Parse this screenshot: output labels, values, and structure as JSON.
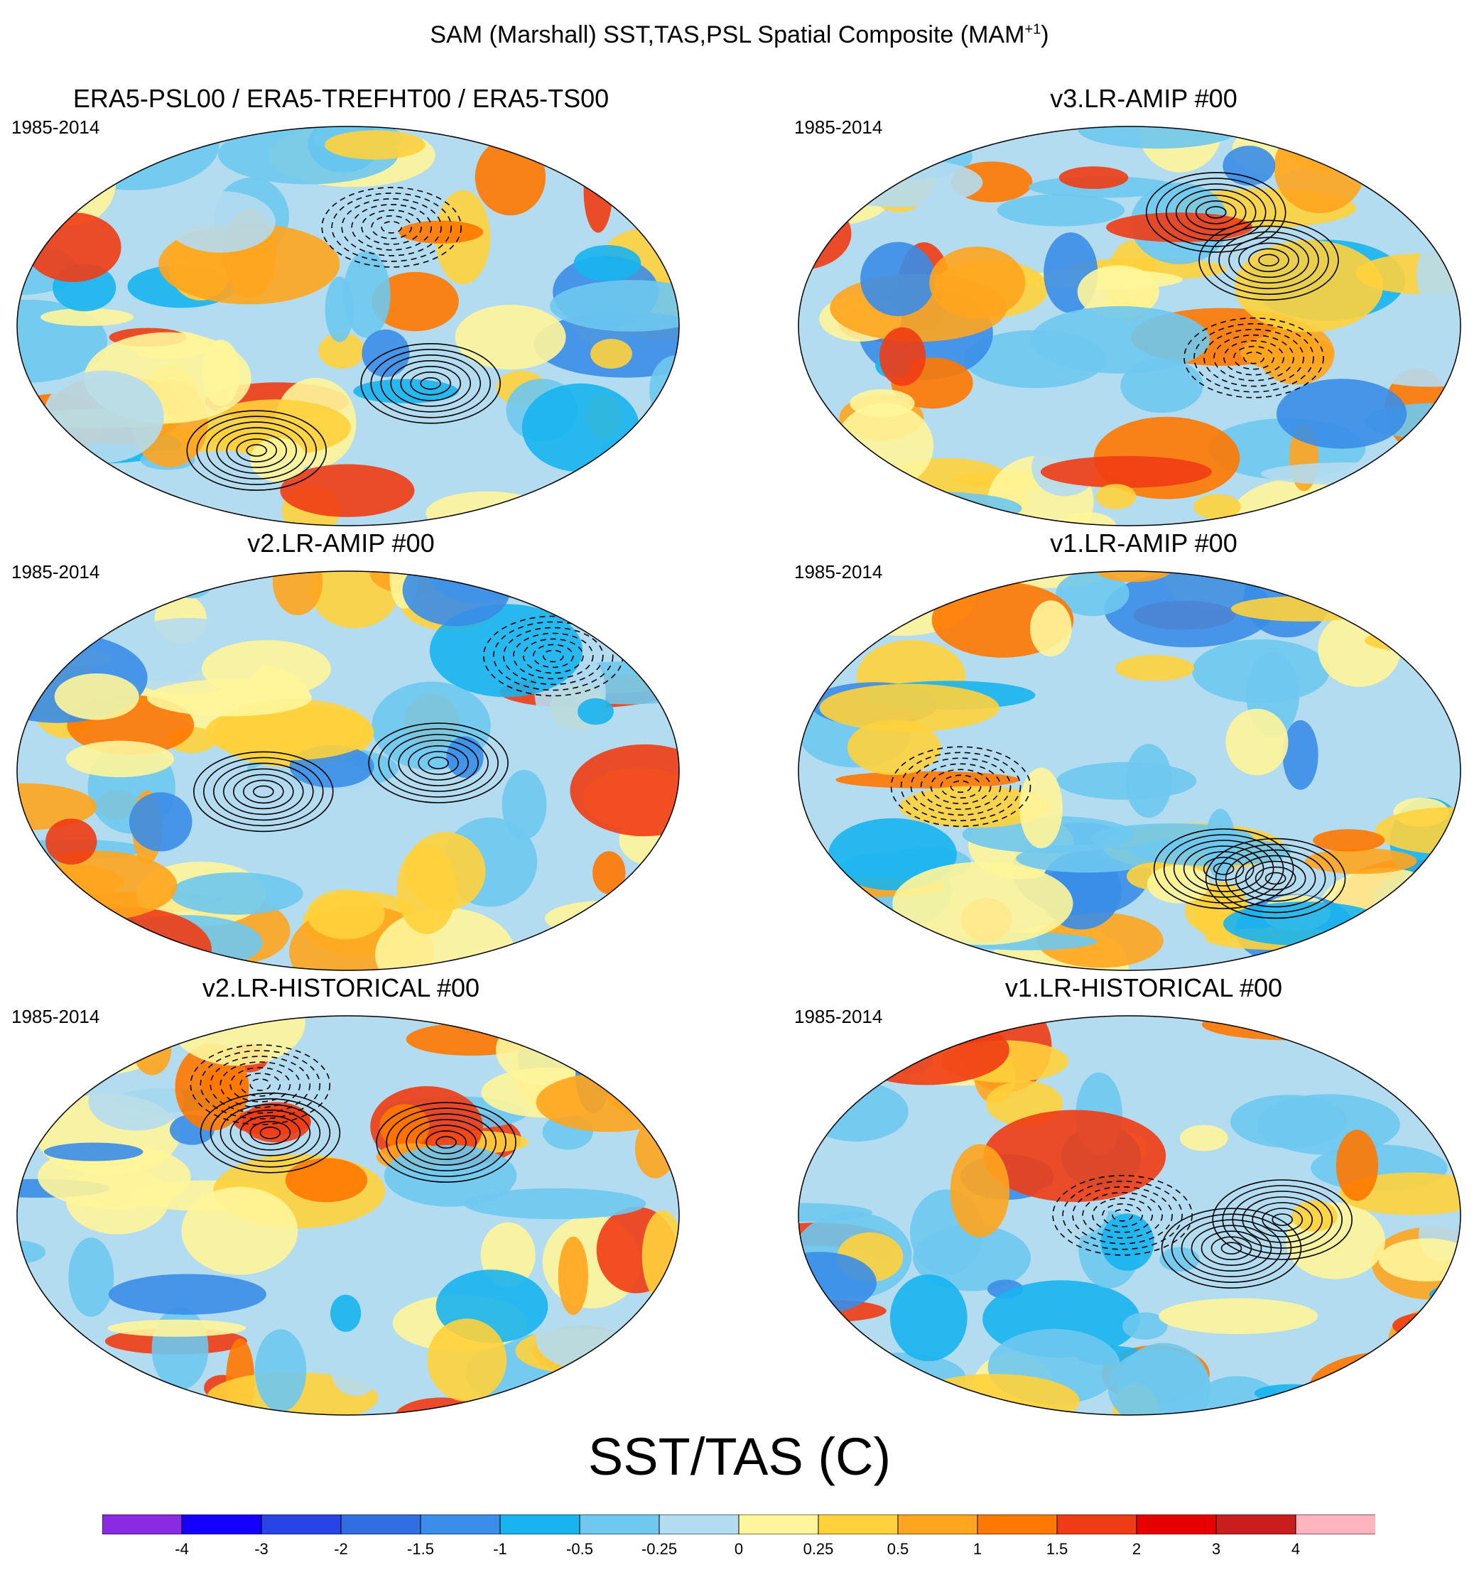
{
  "figure": {
    "title_main": "SAM (Marshall) SST,TAS,PSL Spatial Composite (MAM",
    "title_sup": "+1",
    "title_close": ")"
  },
  "panels": [
    {
      "title": "ERA5-PSL00 / ERA5-TREFHT00 / ERA5-TS00",
      "period": "1985-2014"
    },
    {
      "title": "v3.LR-AMIP  #00",
      "period": "1985-2014"
    },
    {
      "title": "v2.LR-AMIP  #00",
      "period": "1985-2014"
    },
    {
      "title": "v1.LR-AMIP  #00",
      "period": "1985-2014"
    },
    {
      "title": "v2.LR-HISTORICAL  #00",
      "period": "1985-2014"
    },
    {
      "title": "v1.LR-HISTORICAL  #00",
      "period": "1985-2014"
    }
  ],
  "colorbar": {
    "title": "SST/TAS (C)",
    "labels": [
      "-4",
      "-3",
      "-2",
      "-1.5",
      "-1",
      "-0.5",
      "-0.25",
      "0",
      "0.25",
      "0.5",
      "1",
      "1.5",
      "2",
      "3",
      "4"
    ],
    "colors": [
      "#8a2be2",
      "#1400ff",
      "#2844e6",
      "#2f6fe0",
      "#3a8de8",
      "#18b4f0",
      "#6ec8f0",
      "#b4dcf0",
      "#fff59a",
      "#ffd23c",
      "#ffa51e",
      "#ff7800",
      "#f03c14",
      "#e60000",
      "#c81e1e",
      "#ffb4be"
    ]
  }
}
